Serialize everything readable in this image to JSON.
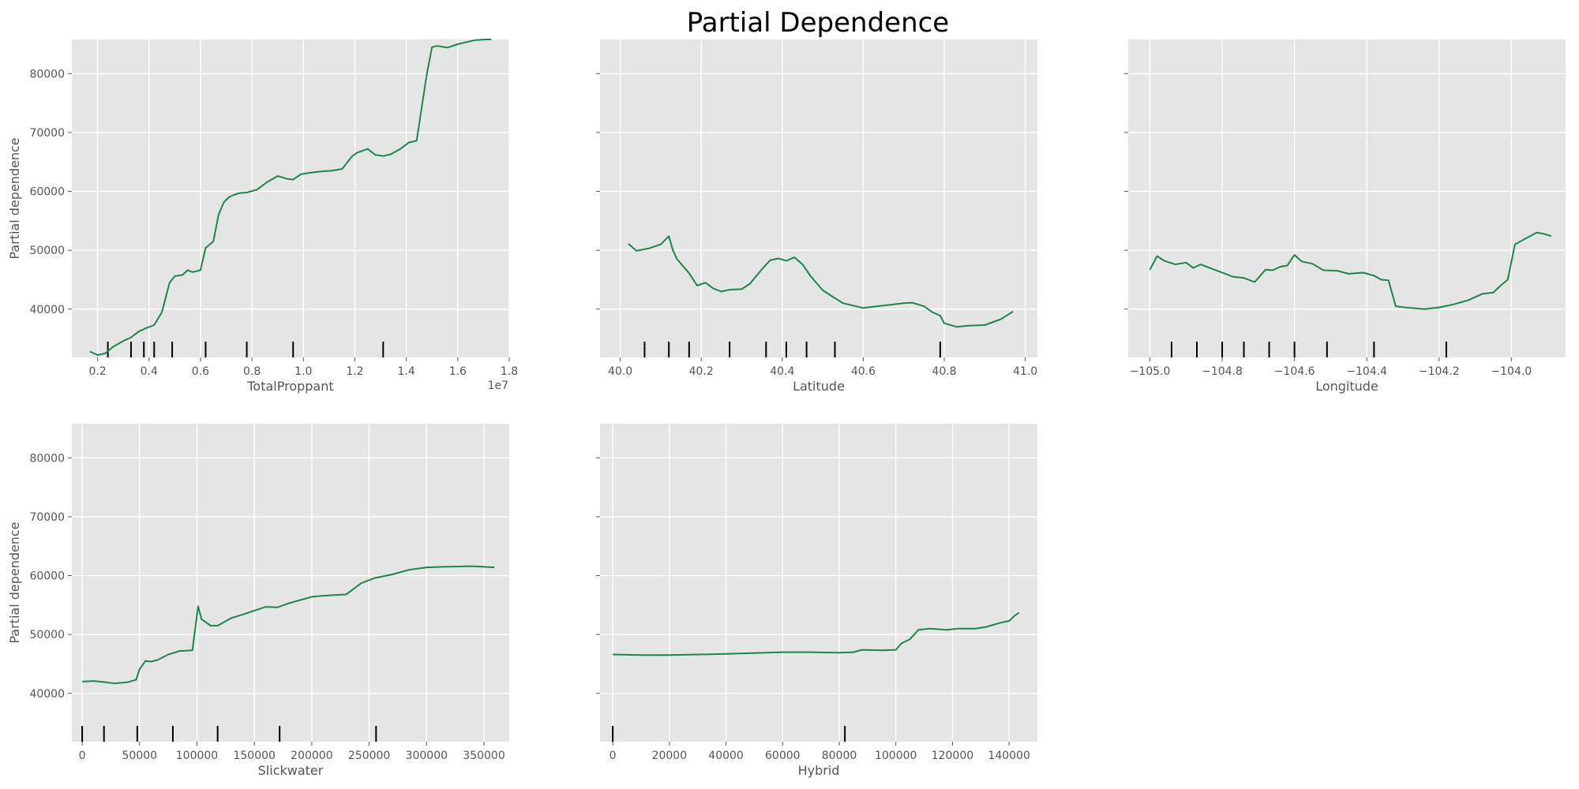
{
  "figure": {
    "title": "Partial Dependence",
    "x_multiplier_label": "1e7",
    "colors": {
      "panel_bg": "#e5e5e5",
      "grid": "#ffffff",
      "line": "#1e8449",
      "tick_text": "#555555",
      "axis_label": "#555555",
      "rug": "#000000",
      "title": "#000000"
    }
  },
  "chart_data": [
    {
      "type": "line",
      "xlabel": "TotalProppant",
      "ylabel": "Partial dependence",
      "x_scale_note": "x values in units of 1e7",
      "xlim": [
        0.1,
        1.8
      ],
      "ylim": [
        31800,
        85800
      ],
      "xticks": [
        0.2,
        0.4,
        0.6,
        0.8,
        1.0,
        1.2,
        1.4,
        1.6,
        1.8
      ],
      "xtick_labels": [
        "0.2",
        "0.4",
        "0.6",
        "0.8",
        "1.0",
        "1.2",
        "1.4",
        "1.6",
        "1.8"
      ],
      "yticks": [
        40000,
        50000,
        60000,
        70000,
        80000
      ],
      "ytick_labels": [
        "40000",
        "50000",
        "60000",
        "70000",
        "80000"
      ],
      "rug": [
        0.24,
        0.33,
        0.38,
        0.42,
        0.49,
        0.62,
        0.78,
        0.96,
        1.31
      ],
      "series": [
        {
          "x": [
            0.17,
            0.2,
            0.23,
            0.26,
            0.3,
            0.33,
            0.36,
            0.39,
            0.42,
            0.45,
            0.48,
            0.5,
            0.53,
            0.55,
            0.57,
            0.6,
            0.62,
            0.65,
            0.67,
            0.69,
            0.71,
            0.73,
            0.75,
            0.78,
            0.82,
            0.86,
            0.9,
            0.94,
            0.96,
            0.99,
            1.03,
            1.07,
            1.11,
            1.15,
            1.19,
            1.21,
            1.25,
            1.28,
            1.31,
            1.34,
            1.38,
            1.41,
            1.44,
            1.48,
            1.5,
            1.52,
            1.56,
            1.6,
            1.63,
            1.67,
            1.71,
            1.73
          ],
          "y": [
            32800,
            32200,
            32500,
            33600,
            34600,
            35200,
            36200,
            36800,
            37300,
            39500,
            44500,
            45600,
            45800,
            46600,
            46300,
            46600,
            50400,
            51500,
            56000,
            58100,
            59000,
            59400,
            59700,
            59800,
            60300,
            61600,
            62600,
            62100,
            62000,
            62900,
            63200,
            63400,
            63500,
            63800,
            66000,
            66600,
            67200,
            66200,
            66000,
            66300,
            67300,
            68300,
            68600,
            80000,
            84500,
            84700,
            84400,
            85000,
            85300,
            85700,
            85800,
            85800
          ]
        }
      ]
    },
    {
      "type": "line",
      "xlabel": "Latitude",
      "ylabel": "",
      "xlim": [
        39.95,
        41.03
      ],
      "ylim": [
        31800,
        85800
      ],
      "xticks": [
        40.0,
        40.2,
        40.4,
        40.6,
        40.8,
        41.0
      ],
      "xtick_labels": [
        "40.0",
        "40.2",
        "40.4",
        "40.6",
        "40.8",
        "41.0"
      ],
      "yticks": [
        40000,
        50000,
        60000,
        70000,
        80000
      ],
      "ytick_labels": [
        "",
        "",
        "",
        "",
        ""
      ],
      "rug": [
        40.06,
        40.12,
        40.17,
        40.27,
        40.36,
        40.41,
        40.46,
        40.53,
        40.79
      ],
      "series": [
        {
          "x": [
            40.02,
            40.04,
            40.07,
            40.1,
            40.12,
            40.13,
            40.14,
            40.17,
            40.19,
            40.21,
            40.23,
            40.25,
            40.27,
            40.3,
            40.32,
            40.35,
            40.37,
            40.39,
            40.41,
            40.43,
            40.45,
            40.47,
            40.5,
            40.52,
            40.55,
            40.6,
            40.65,
            40.7,
            40.72,
            40.75,
            40.77,
            40.79,
            40.8,
            40.83,
            40.86,
            40.9,
            40.94,
            40.97
          ],
          "y": [
            51100,
            49900,
            50300,
            51000,
            52400,
            50000,
            48500,
            46100,
            44000,
            44500,
            43500,
            43000,
            43300,
            43400,
            44300,
            46800,
            48300,
            48600,
            48200,
            48800,
            47600,
            45600,
            43200,
            42300,
            41000,
            40200,
            40600,
            41000,
            41100,
            40500,
            39500,
            38900,
            37600,
            37000,
            37200,
            37300,
            38300,
            39600
          ]
        }
      ]
    },
    {
      "type": "line",
      "xlabel": "Longitude",
      "ylabel": "",
      "xlim": [
        -105.06,
        -103.85
      ],
      "ylim": [
        31800,
        85800
      ],
      "xticks": [
        -105.0,
        -104.8,
        -104.6,
        -104.4,
        -104.2,
        -104.0
      ],
      "xtick_labels": [
        "−105.0",
        "−104.8",
        "−104.6",
        "−104.4",
        "−104.2",
        "−104.0"
      ],
      "yticks": [
        40000,
        50000,
        60000,
        70000,
        80000
      ],
      "ytick_labels": [
        "",
        "",
        "",
        "",
        ""
      ],
      "rug": [
        -104.94,
        -104.87,
        -104.8,
        -104.74,
        -104.67,
        -104.6,
        -104.51,
        -104.38,
        -104.18
      ],
      "series": [
        {
          "x": [
            -105.0,
            -104.98,
            -104.96,
            -104.93,
            -104.9,
            -104.88,
            -104.86,
            -104.83,
            -104.8,
            -104.77,
            -104.74,
            -104.71,
            -104.68,
            -104.66,
            -104.64,
            -104.62,
            -104.6,
            -104.58,
            -104.55,
            -104.52,
            -104.48,
            -104.45,
            -104.41,
            -104.38,
            -104.36,
            -104.34,
            -104.32,
            -104.28,
            -104.24,
            -104.2,
            -104.16,
            -104.12,
            -104.08,
            -104.05,
            -104.03,
            -104.01,
            -103.99,
            -103.96,
            -103.93,
            -103.91,
            -103.89
          ],
          "y": [
            46700,
            49000,
            48200,
            47600,
            47900,
            47000,
            47600,
            46900,
            46200,
            45500,
            45300,
            44600,
            46700,
            46600,
            47200,
            47400,
            49200,
            48100,
            47700,
            46600,
            46500,
            46000,
            46200,
            45700,
            45000,
            44900,
            40500,
            40200,
            40000,
            40300,
            40800,
            41500,
            42600,
            42800,
            44000,
            45000,
            51000,
            52000,
            53000,
            52800,
            52400
          ]
        }
      ]
    },
    {
      "type": "line",
      "xlabel": "Slickwater",
      "ylabel": "Partial dependence",
      "xlim": [
        -9000,
        372000
      ],
      "ylim": [
        31800,
        85800
      ],
      "xticks": [
        0,
        50000,
        100000,
        150000,
        200000,
        250000,
        300000,
        350000
      ],
      "xtick_labels": [
        "0",
        "50000",
        "100000",
        "150000",
        "200000",
        "250000",
        "300000",
        "350000"
      ],
      "yticks": [
        40000,
        50000,
        60000,
        70000,
        80000
      ],
      "ytick_labels": [
        "40000",
        "50000",
        "60000",
        "70000",
        "80000"
      ],
      "rug": [
        0,
        19000,
        48000,
        79000,
        118000,
        172000,
        256000
      ],
      "series": [
        {
          "x": [
            0,
            10000,
            20000,
            28000,
            40000,
            47000,
            50000,
            55000,
            60000,
            66000,
            75000,
            85000,
            96000,
            101000,
            104000,
            112000,
            118000,
            130000,
            140000,
            160000,
            170000,
            180000,
            200000,
            212000,
            230000,
            243000,
            255000,
            270000,
            285000,
            300000,
            315000,
            340000,
            359000
          ],
          "y": [
            42000,
            42100,
            41900,
            41700,
            41900,
            42300,
            44100,
            45500,
            45400,
            45700,
            46600,
            47200,
            47300,
            54800,
            52600,
            51500,
            51500,
            52800,
            53400,
            54700,
            54600,
            55300,
            56400,
            56600,
            56800,
            58700,
            59600,
            60200,
            61000,
            61400,
            61500,
            61600,
            61400
          ]
        }
      ]
    },
    {
      "type": "line",
      "xlabel": "Hybrid",
      "ylabel": "",
      "xlim": [
        -4500,
        150000
      ],
      "ylim": [
        31800,
        85800
      ],
      "xticks": [
        0,
        20000,
        40000,
        60000,
        80000,
        100000,
        120000,
        140000
      ],
      "xtick_labels": [
        "0",
        "20000",
        "40000",
        "60000",
        "80000",
        "100000",
        "120000",
        "140000"
      ],
      "yticks": [
        40000,
        50000,
        60000,
        70000,
        80000
      ],
      "ytick_labels": [
        "",
        "",
        "",
        "",
        ""
      ],
      "rug": [
        0,
        82000
      ],
      "series": [
        {
          "x": [
            0,
            10000,
            20000,
            40000,
            60000,
            70000,
            80000,
            85000,
            88000,
            95000,
            100000,
            102000,
            105000,
            108000,
            112000,
            118000,
            122000,
            128000,
            132000,
            137000,
            140000,
            142000,
            143500
          ],
          "y": [
            46600,
            46500,
            46500,
            46700,
            47000,
            47000,
            46900,
            47000,
            47400,
            47300,
            47400,
            48500,
            49200,
            50800,
            51000,
            50800,
            51000,
            51000,
            51300,
            52000,
            52300,
            53200,
            53700
          ]
        }
      ]
    }
  ]
}
